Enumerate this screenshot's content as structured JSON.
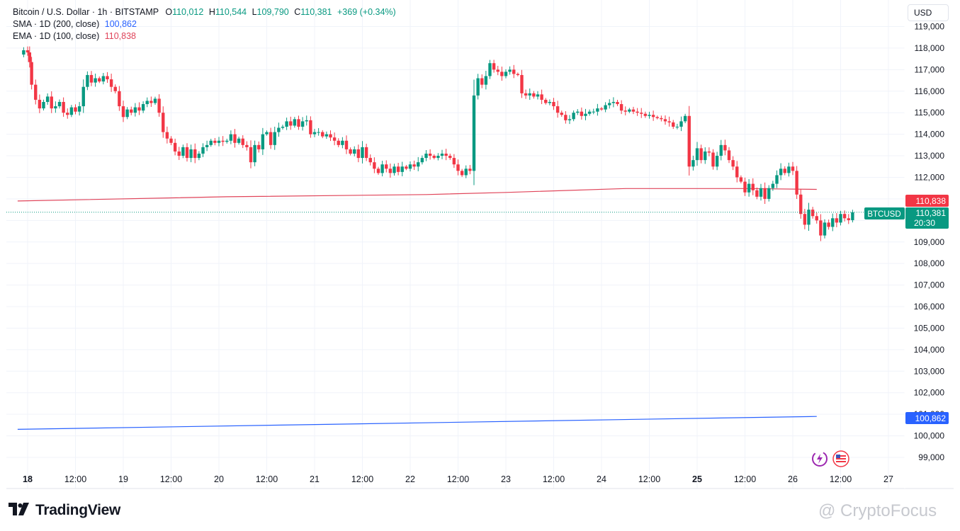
{
  "legend": {
    "symbol": "Bitcoin / U.S. Dollar · 1h · BITSTAMP",
    "o_label": "O",
    "o_value": "110,012",
    "h_label": "H",
    "h_value": "110,544",
    "l_label": "L",
    "l_value": "109,790",
    "c_label": "C",
    "c_value": "110,381",
    "change": "+369 (+0.34%)",
    "sma_label": "SMA · 1D (200, close)",
    "sma_value": "100,862",
    "ema_label": "EMA · 1D (100, close)",
    "ema_value": "110,838"
  },
  "currency": "USD",
  "price_tag": {
    "symbol": "BTCUSD",
    "price": "110,381",
    "countdown": "20:30"
  },
  "ema_tag": "110,838",
  "sma_tag": "100,862",
  "footer": {
    "brand": "TradingView",
    "watermark": "@ CryptoFocus"
  },
  "colors": {
    "up": "#089981",
    "down": "#f23645",
    "sma": "#2962ff",
    "ema": "#e0445a",
    "grid": "#f0f3fa"
  },
  "icons": [
    "tradingview-logo-icon",
    "lightning-icon",
    "us-flag-icon"
  ],
  "chart_data": {
    "type": "candlestick",
    "title": "Bitcoin / U.S. Dollar · 1h · BITSTAMP",
    "y_ticks": [
      99000,
      100000,
      101000,
      102000,
      103000,
      104000,
      105000,
      106000,
      107000,
      108000,
      109000,
      110000,
      111000,
      112000,
      113000,
      114000,
      115000,
      116000,
      117000,
      118000,
      119000
    ],
    "y_tick_labels": [
      "99,000",
      "100,000",
      "101,000",
      "102,000",
      "103,000",
      "104,000",
      "105,000",
      "106,000",
      "107,000",
      "108,000",
      "109,000",
      "110,000",
      "111,000",
      "112,000",
      "113,000",
      "114,000",
      "115,000",
      "116,000",
      "117,000",
      "118,000",
      "119,000"
    ],
    "ylim": [
      98600,
      119300
    ],
    "x_ticks": [
      "18",
      "12:00",
      "19",
      "12:00",
      "20",
      "12:00",
      "21",
      "12:00",
      "22",
      "12:00",
      "23",
      "12:00",
      "24",
      "12:00",
      "25",
      "12:00",
      "26",
      "12:00",
      "27"
    ],
    "x_tick_values_hours": [
      0,
      12,
      24,
      36,
      48,
      60,
      72,
      84,
      96,
      108,
      120,
      132,
      144,
      156,
      168,
      180,
      192,
      204,
      216
    ],
    "bold_ticks": [
      "18",
      "25"
    ],
    "xlim_hours": [
      -2.5,
      227
    ],
    "grid": true,
    "close_path": [
      [
        -2.5,
        117700
      ],
      [
        -1,
        117900
      ],
      [
        0,
        117800
      ],
      [
        0.5,
        117350
      ],
      [
        1,
        116300
      ],
      [
        2,
        115600
      ],
      [
        3,
        115200
      ],
      [
        4,
        115500
      ],
      [
        5,
        115750
      ],
      [
        6,
        115200
      ],
      [
        7,
        115300
      ],
      [
        8,
        115500
      ],
      [
        9,
        115000
      ],
      [
        10,
        114900
      ],
      [
        11,
        115250
      ],
      [
        12,
        115050
      ],
      [
        13,
        115300
      ],
      [
        14,
        116200
      ],
      [
        15,
        116750
      ],
      [
        16,
        116400
      ],
      [
        17,
        116600
      ],
      [
        18,
        116450
      ],
      [
        19,
        116700
      ],
      [
        20,
        116550
      ],
      [
        21,
        116200
      ],
      [
        22,
        116000
      ],
      [
        23,
        115300
      ],
      [
        24,
        114800
      ],
      [
        25,
        115150
      ],
      [
        26,
        115000
      ],
      [
        27,
        115250
      ],
      [
        28,
        115100
      ],
      [
        29,
        115400
      ],
      [
        30,
        115550
      ],
      [
        31,
        115450
      ],
      [
        32,
        115650
      ],
      [
        33,
        115000
      ],
      [
        34,
        114100
      ],
      [
        35,
        113800
      ],
      [
        36,
        113600
      ],
      [
        37,
        113200
      ],
      [
        38,
        113000
      ],
      [
        39,
        113400
      ],
      [
        40,
        112900
      ],
      [
        41,
        113300
      ],
      [
        42,
        112900
      ],
      [
        43,
        113100
      ],
      [
        44,
        113400
      ],
      [
        45,
        113500
      ],
      [
        46,
        113700
      ],
      [
        47,
        113600
      ],
      [
        48,
        113700
      ],
      [
        49,
        113650
      ],
      [
        50,
        113700
      ],
      [
        51,
        114000
      ],
      [
        52,
        113600
      ],
      [
        53,
        113800
      ],
      [
        54,
        113500
      ],
      [
        55,
        113400
      ],
      [
        56,
        112700
      ],
      [
        57,
        113500
      ],
      [
        58,
        113300
      ],
      [
        59,
        114000
      ],
      [
        60,
        114100
      ],
      [
        61,
        113500
      ],
      [
        62,
        114100
      ],
      [
        63,
        114300
      ],
      [
        64,
        114350
      ],
      [
        65,
        114600
      ],
      [
        66,
        114400
      ],
      [
        67,
        114700
      ],
      [
        68,
        114350
      ],
      [
        69,
        114600
      ],
      [
        70,
        114650
      ],
      [
        71,
        114000
      ],
      [
        72,
        114100
      ],
      [
        73,
        114100
      ],
      [
        74,
        113900
      ],
      [
        75,
        114000
      ],
      [
        76,
        113850
      ],
      [
        77,
        113700
      ],
      [
        78,
        113500
      ],
      [
        79,
        113700
      ],
      [
        80,
        113300
      ],
      [
        81,
        113100
      ],
      [
        82,
        113300
      ],
      [
        83,
        112900
      ],
      [
        84,
        113400
      ],
      [
        85,
        112900
      ],
      [
        86,
        112700
      ],
      [
        87,
        112400
      ],
      [
        88,
        112200
      ],
      [
        89,
        112600
      ],
      [
        90,
        112400
      ],
      [
        91,
        112200
      ],
      [
        92,
        112500
      ],
      [
        93,
        112250
      ],
      [
        94,
        112500
      ],
      [
        95,
        112400
      ],
      [
        96,
        112600
      ],
      [
        97,
        112500
      ],
      [
        98,
        112700
      ],
      [
        99,
        112900
      ],
      [
        100,
        113100
      ],
      [
        101,
        113000
      ],
      [
        102,
        112900
      ],
      [
        103,
        113000
      ],
      [
        104,
        113100
      ],
      [
        105,
        113000
      ],
      [
        106,
        112900
      ],
      [
        107,
        112600
      ],
      [
        108,
        112300
      ],
      [
        109,
        112100
      ],
      [
        110,
        112400
      ],
      [
        111,
        112300
      ],
      [
        112,
        115800
      ],
      [
        113,
        116600
      ],
      [
        114,
        116300
      ],
      [
        115,
        116700
      ],
      [
        116,
        117300
      ],
      [
        117,
        117000
      ],
      [
        118,
        116900
      ],
      [
        119,
        116700
      ],
      [
        120,
        116900
      ],
      [
        121,
        117000
      ],
      [
        122,
        116800
      ],
      [
        123,
        116750
      ],
      [
        124,
        115900
      ],
      [
        125,
        115800
      ],
      [
        126,
        115900
      ],
      [
        127,
        115750
      ],
      [
        128,
        115850
      ],
      [
        129,
        115600
      ],
      [
        130,
        115450
      ],
      [
        131,
        115500
      ],
      [
        132,
        115300
      ],
      [
        133,
        115000
      ],
      [
        134,
        114900
      ],
      [
        135,
        114650
      ],
      [
        136,
        114700
      ],
      [
        137,
        115000
      ],
      [
        138,
        115050
      ],
      [
        139,
        114850
      ],
      [
        140,
        114950
      ],
      [
        141,
        115050
      ],
      [
        142,
        115050
      ],
      [
        143,
        115200
      ],
      [
        144,
        115150
      ],
      [
        145,
        115350
      ],
      [
        146,
        115450
      ],
      [
        147,
        115500
      ],
      [
        148,
        115400
      ],
      [
        149,
        115100
      ],
      [
        150,
        115050
      ],
      [
        151,
        115150
      ],
      [
        152,
        115050
      ],
      [
        153,
        115000
      ],
      [
        154,
        114950
      ],
      [
        155,
        114850
      ],
      [
        156,
        114900
      ],
      [
        157,
        114800
      ],
      [
        158,
        114750
      ],
      [
        159,
        114700
      ],
      [
        160,
        114600
      ],
      [
        161,
        114550
      ],
      [
        162,
        114350
      ],
      [
        163,
        114350
      ],
      [
        164,
        114600
      ],
      [
        165,
        114850
      ],
      [
        166,
        112500
      ],
      [
        167,
        112800
      ],
      [
        168,
        113350
      ],
      [
        169,
        112800
      ],
      [
        170,
        113200
      ],
      [
        171,
        113150
      ],
      [
        172,
        112500
      ],
      [
        173,
        113000
      ],
      [
        174,
        113500
      ],
      [
        175,
        113250
      ],
      [
        176,
        112800
      ],
      [
        177,
        112500
      ],
      [
        178,
        112000
      ],
      [
        179,
        111800
      ],
      [
        180,
        111300
      ],
      [
        181,
        111700
      ],
      [
        182,
        111400
      ],
      [
        183,
        111100
      ],
      [
        184,
        111500
      ],
      [
        185,
        111000
      ],
      [
        186,
        111500
      ],
      [
        187,
        111700
      ],
      [
        188,
        112100
      ],
      [
        189,
        112400
      ],
      [
        190,
        112200
      ],
      [
        191,
        112500
      ],
      [
        192,
        112300
      ],
      [
        193,
        111200
      ],
      [
        194,
        110300
      ],
      [
        195,
        109800
      ],
      [
        196,
        110500
      ],
      [
        197,
        110200
      ],
      [
        198,
        110000
      ],
      [
        199,
        109300
      ],
      [
        200,
        109900
      ],
      [
        201,
        109700
      ],
      [
        202,
        110100
      ],
      [
        203,
        109900
      ],
      [
        204,
        110300
      ],
      [
        205,
        110100
      ],
      [
        206,
        110012
      ],
      [
        207,
        110381
      ]
    ],
    "sma_line": {
      "name": "SMA · 1D (200, close)",
      "points": [
        [
          -2.5,
          100300
        ],
        [
          198,
          100900
        ]
      ],
      "last": 100862
    },
    "ema_line": {
      "name": "EMA · 1D (100, close)",
      "points": [
        [
          -2.5,
          110900
        ],
        [
          50,
          111100
        ],
        [
          100,
          111200
        ],
        [
          120,
          111300
        ],
        [
          150,
          111480
        ],
        [
          180,
          111480
        ],
        [
          198,
          111440
        ]
      ],
      "last": 110838
    },
    "last_price": 110381
  }
}
